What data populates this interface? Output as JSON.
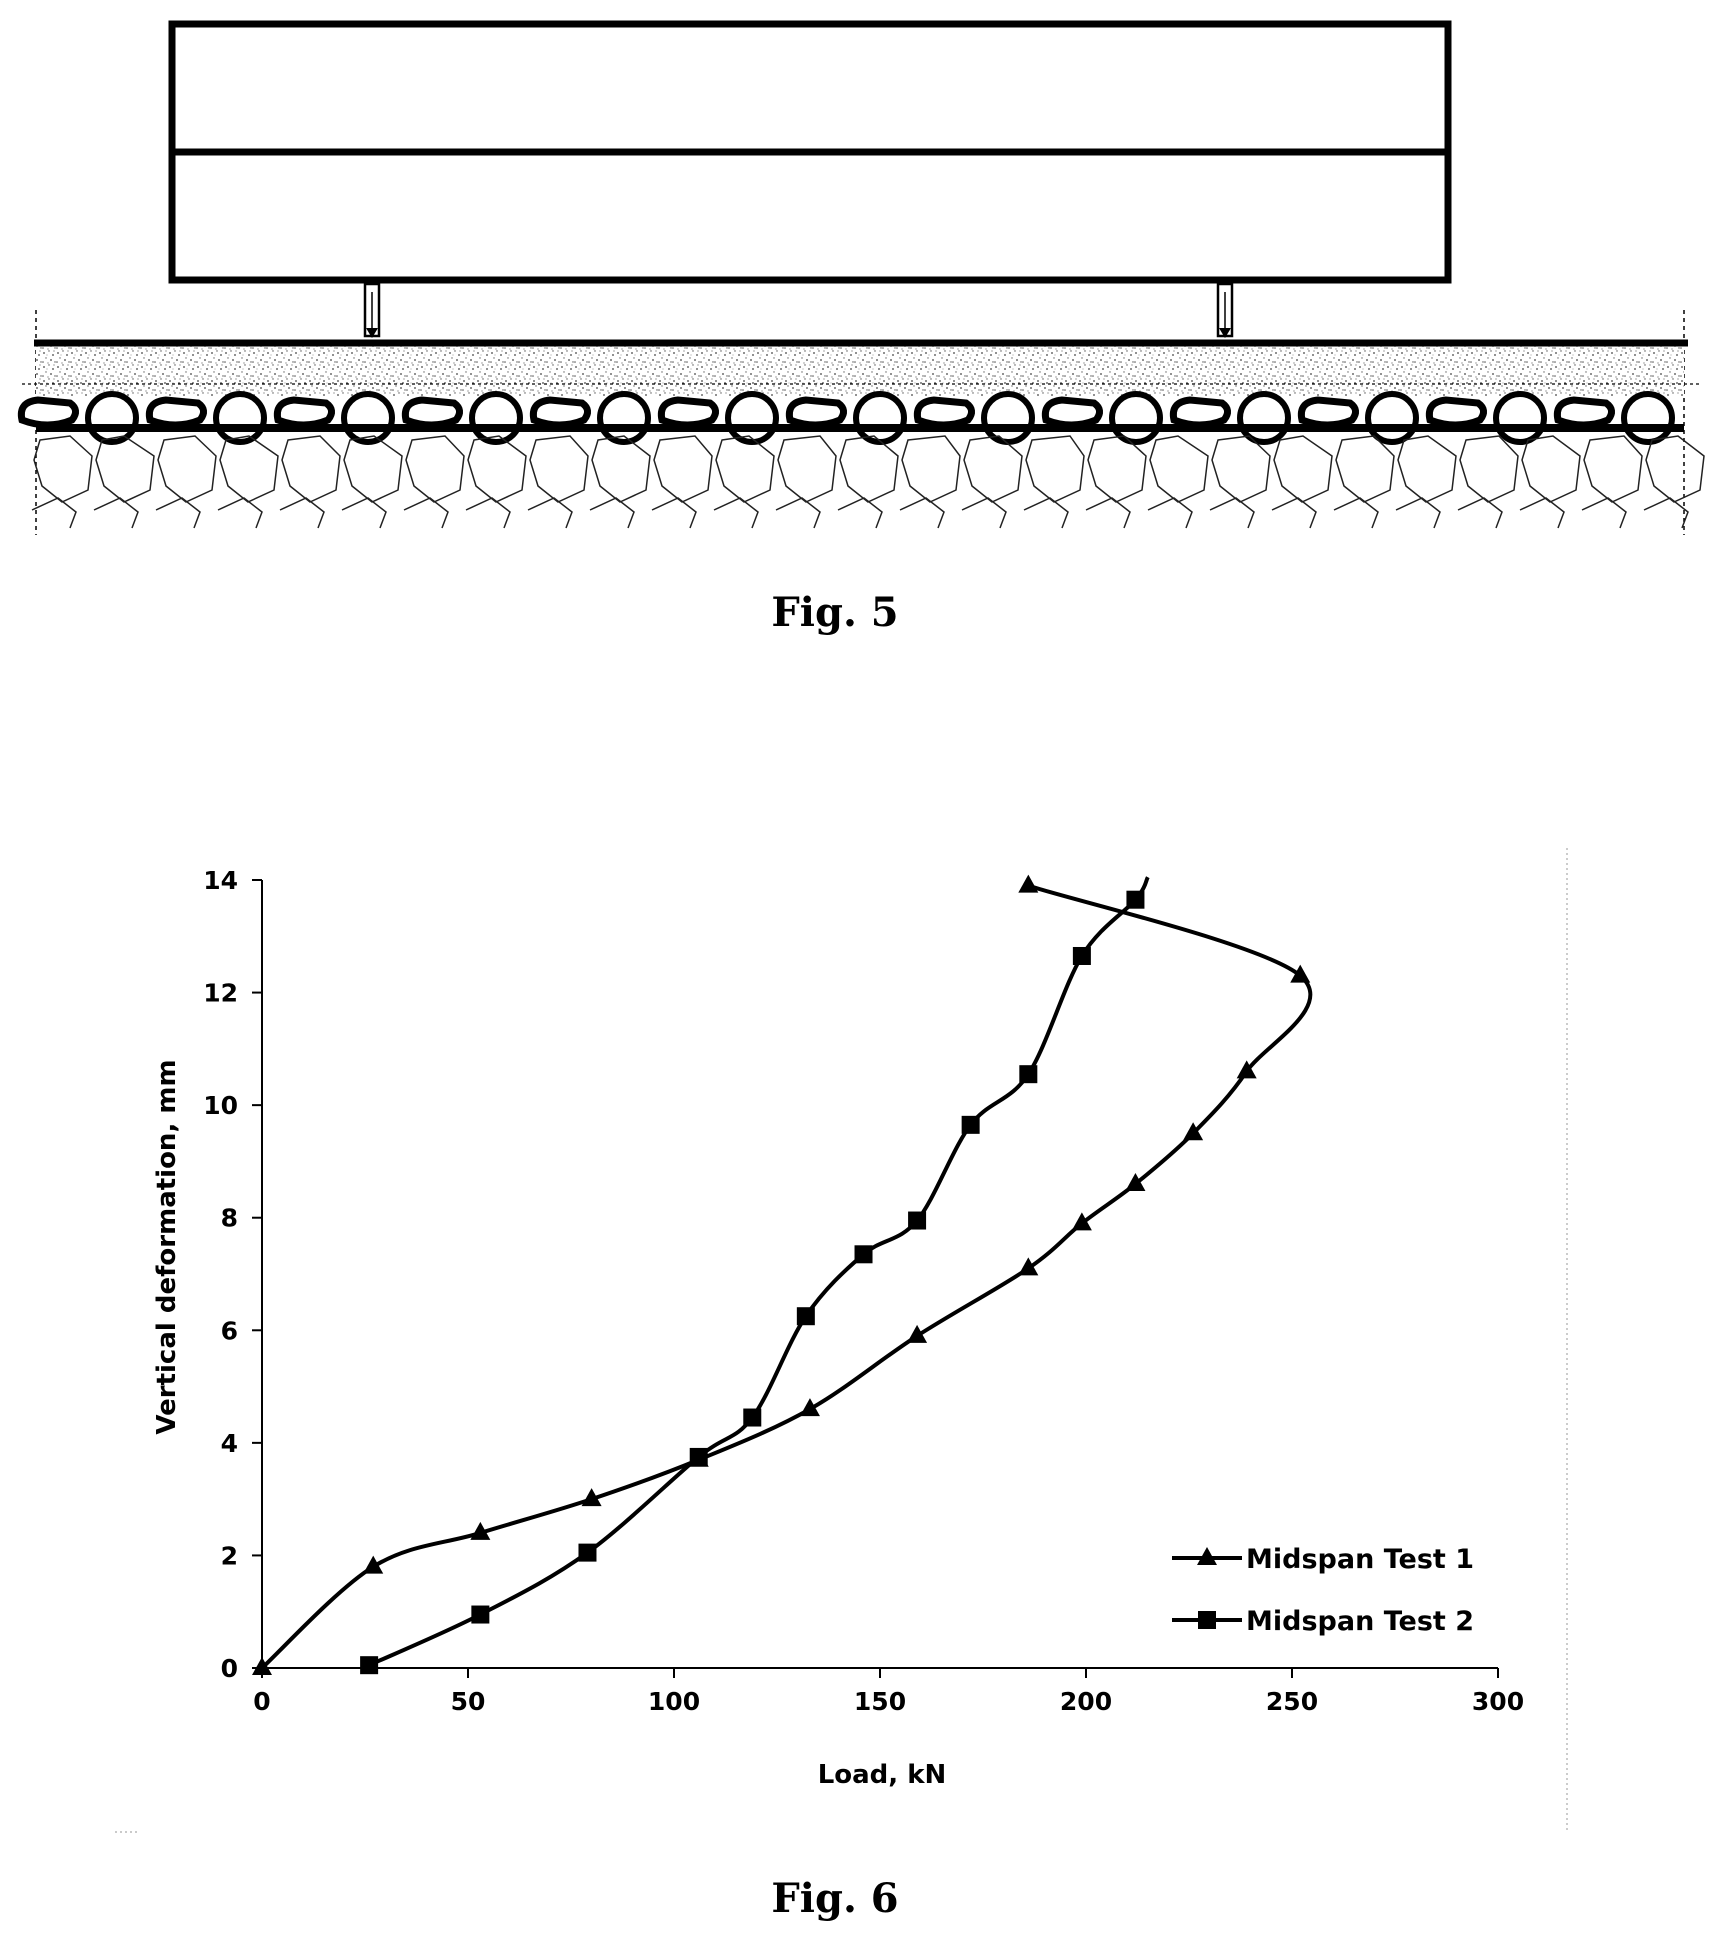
{
  "figures": [
    {
      "caption": "Fig. 5"
    },
    {
      "caption": "Fig. 6"
    }
  ],
  "chart_data": {
    "type": "line",
    "xlabel": "Load, kN",
    "ylabel": "Vertical deformation, mm",
    "xlim": [
      0,
      300
    ],
    "ylim": [
      0,
      14
    ],
    "xticks": [
      "0",
      "50",
      "100",
      "150",
      "200",
      "250",
      "300"
    ],
    "yticks": [
      "0",
      "2",
      "4",
      "6",
      "8",
      "10",
      "12",
      "14"
    ],
    "grid": false,
    "legend_position": "bottom-right",
    "series": [
      {
        "name": "Midspan Test 1",
        "marker": "triangle",
        "x": [
          0,
          27,
          53,
          80,
          106,
          133,
          159,
          186,
          199,
          212,
          226,
          239,
          252,
          186
        ],
        "y": [
          0,
          1.8,
          2.4,
          3.0,
          3.7,
          4.6,
          5.9,
          7.1,
          7.9,
          8.6,
          9.5,
          10.6,
          12.3,
          13.9
        ]
      },
      {
        "name": "Midspan Test 2",
        "marker": "square",
        "x": [
          26,
          53,
          79,
          106,
          119,
          132,
          146,
          159,
          172,
          186,
          199,
          212
        ],
        "y": [
          0.05,
          0.95,
          2.05,
          3.75,
          4.45,
          6.25,
          7.35,
          7.95,
          9.65,
          10.55,
          12.65,
          13.65
        ]
      }
    ]
  }
}
